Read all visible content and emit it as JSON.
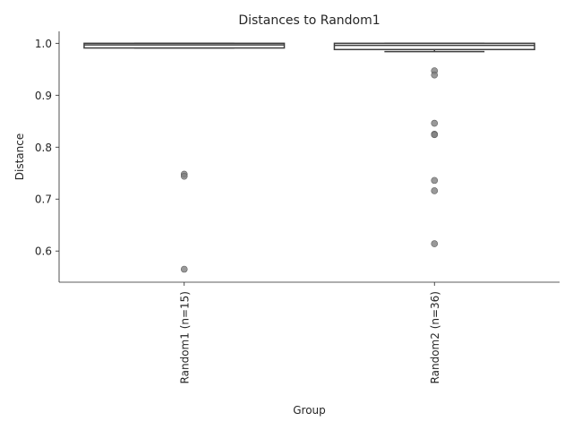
{
  "chart_data": {
    "type": "box",
    "title": "Distances to Random1",
    "xlabel": "Group",
    "ylabel": "Distance",
    "ylim": [
      0.54,
      1.023
    ],
    "yticks": [
      0.6,
      0.7,
      0.8,
      0.9,
      1.0
    ],
    "ytick_labels": [
      "0.6",
      "0.7",
      "0.8",
      "0.9",
      "1.0"
    ],
    "grid": false,
    "categories": [
      "Random1 (n=15)",
      "Random2 (n=36)"
    ],
    "boxes": [
      {
        "name": "Random1 (n=15)",
        "q1": 0.991,
        "median": 0.997,
        "q3": 1.0,
        "whisker_low": 0.991,
        "whisker_high": 1.0
      },
      {
        "name": "Random2 (n=36)",
        "q1": 0.988,
        "median": 0.996,
        "q3": 1.0,
        "whisker_low": 0.984,
        "whisker_high": 1.0
      }
    ],
    "points": [
      {
        "group": 0,
        "value": 0.748
      },
      {
        "group": 0,
        "value": 0.744
      },
      {
        "group": 0,
        "value": 0.565
      },
      {
        "group": 1,
        "value": 0.947
      },
      {
        "group": 1,
        "value": 0.939
      },
      {
        "group": 1,
        "value": 0.846
      },
      {
        "group": 1,
        "value": 0.825
      },
      {
        "group": 1,
        "value": 0.824
      },
      {
        "group": 1,
        "value": 0.736
      },
      {
        "group": 1,
        "value": 0.716
      },
      {
        "group": 1,
        "value": 0.614
      }
    ],
    "colors": {
      "box_edge": "#3f3f3f",
      "point": "#7f7f7f",
      "axis": "#262626",
      "text": "#262626"
    }
  }
}
